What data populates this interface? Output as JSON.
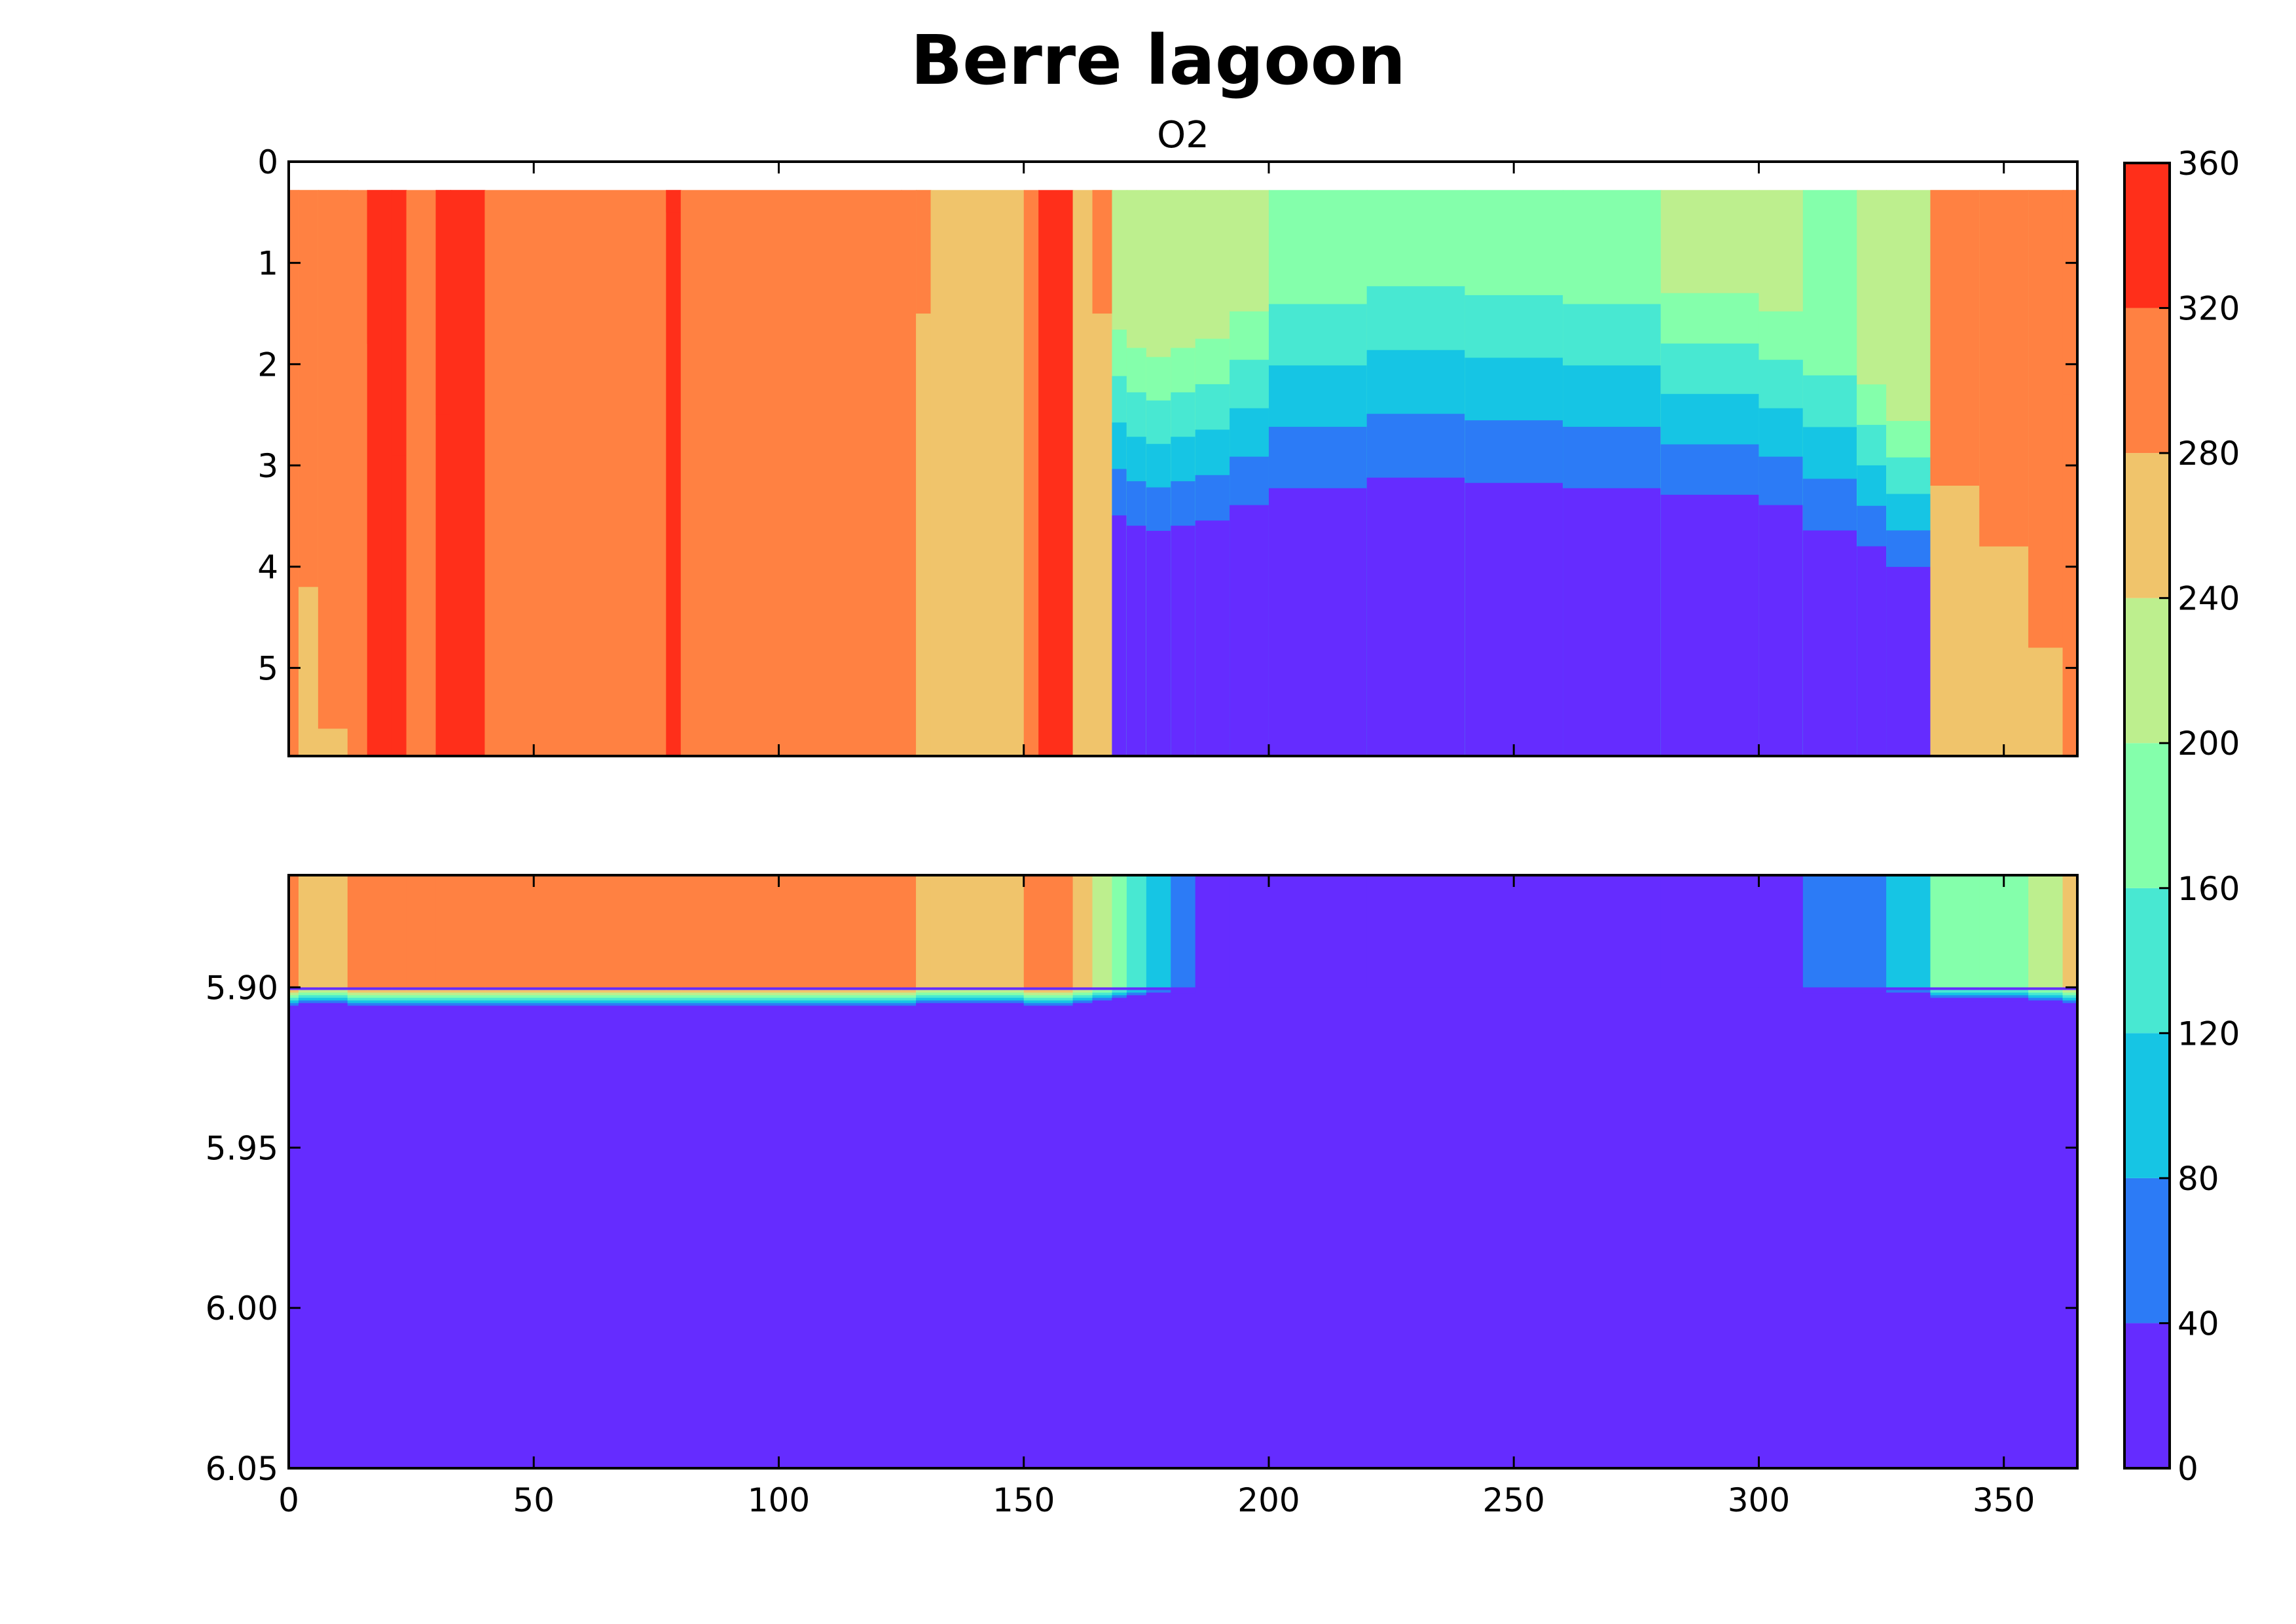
{
  "chart_data": {
    "type": "heatmap",
    "title": "Berre lagoon",
    "subtitle": "O2",
    "x": {
      "lim": [
        0,
        365
      ],
      "ticks": [
        0,
        50,
        100,
        150,
        200,
        250,
        300,
        350
      ],
      "tick_labels": [
        "0",
        "50",
        "100",
        "150",
        "200",
        "250",
        "300",
        "350"
      ]
    },
    "panels": [
      {
        "name": "upper",
        "y_lim": [
          0,
          5.87
        ],
        "y_inverted": true,
        "y_ticks": [
          0,
          1,
          2,
          3,
          4,
          5
        ],
        "y_tick_labels": [
          "0",
          "1",
          "2",
          "3",
          "4",
          "5"
        ]
      },
      {
        "name": "lower",
        "y_lim": [
          5.865,
          6.05
        ],
        "y_inverted": true,
        "y_ticks": [
          5.9,
          5.95,
          6.0,
          6.05
        ],
        "y_tick_labels": [
          "5.90",
          "5.95",
          "6.00",
          "6.05"
        ]
      }
    ],
    "colorbar": {
      "levels": [
        0,
        40,
        80,
        120,
        160,
        200,
        240,
        280,
        320,
        360
      ],
      "tick_labels": [
        "0",
        "40",
        "80",
        "120",
        "160",
        "200",
        "240",
        "280",
        "320",
        "360"
      ],
      "colors": [
        "#652cff",
        "#2c7bf6",
        "#16c5e4",
        "#48e8d2",
        "#84ffab",
        "#bdef8e",
        "#f0c46b",
        "#ff8142",
        "#ff2f1a"
      ]
    },
    "columns": [
      {
        "x": 0,
        "top": 0.28,
        "upper_band": 7,
        "upper_depth": 3.3,
        "mid_band": 7,
        "lower_band": 6
      },
      {
        "x": 2,
        "top": 0.28,
        "upper_band": 6,
        "upper_depth": 4.2,
        "mid_band": 6,
        "lower_band": 6
      },
      {
        "x": 6,
        "top": 0.28,
        "upper_band": 6,
        "upper_depth": 5.6,
        "mid_band": 6,
        "lower_band": 6
      },
      {
        "x": 12,
        "top": 0.28,
        "upper_band": 7,
        "upper_depth": null,
        "mid_band": 7,
        "lower_band": 6
      },
      {
        "x": 16,
        "top": 0.28,
        "upper_band": 8,
        "upper_depth": 1.8,
        "mid_band": 7,
        "lower_band": 6
      },
      {
        "x": 21,
        "top": 0.28,
        "upper_band": 8,
        "upper_depth": 2.9,
        "mid_band": 7,
        "lower_band": 6
      },
      {
        "x": 24,
        "top": 0.28,
        "upper_band": 7,
        "upper_depth": null,
        "mid_band": 7,
        "lower_band": 6
      },
      {
        "x": 30,
        "top": 0.28,
        "upper_band": 8,
        "upper_depth": 2.5,
        "mid_band": 7,
        "lower_band": 6
      },
      {
        "x": 33,
        "top": 0.28,
        "upper_band": 8,
        "upper_depth": 1.8,
        "mid_band": 7,
        "lower_band": 6
      },
      {
        "x": 40,
        "top": 0.28,
        "upper_band": 7,
        "upper_depth": null,
        "mid_band": 7,
        "lower_band": 6
      },
      {
        "x": 77,
        "top": 0.28,
        "upper_band": 8,
        "upper_depth": 0.5,
        "mid_band": 7,
        "lower_band": 6
      },
      {
        "x": 80,
        "top": 0.28,
        "upper_band": 7,
        "upper_depth": null,
        "mid_band": 7,
        "lower_band": 6
      },
      {
        "x": 125,
        "top": 0.28,
        "upper_band": 7,
        "upper_depth": null,
        "mid_band": 7,
        "lower_band": 6
      },
      {
        "x": 128,
        "top": 0.28,
        "upper_band": 6,
        "upper_depth": 1.5,
        "mid_band": 6,
        "lower_band": 6
      },
      {
        "x": 131,
        "top": 0.28,
        "upper_band": 6,
        "upper_depth": null,
        "mid_band": 6,
        "lower_band": 6
      },
      {
        "x": 150,
        "top": 0.28,
        "upper_band": 7,
        "upper_depth": null,
        "mid_band": 7,
        "lower_band": 6
      },
      {
        "x": 153,
        "top": 0.28,
        "upper_band": 8,
        "upper_depth": null,
        "mid_band": 7,
        "lower_band": 6
      },
      {
        "x": 160,
        "top": 0.28,
        "upper_band": 6,
        "upper_depth": null,
        "mid_band": 6,
        "lower_band": 5
      },
      {
        "x": 164,
        "top": 0.28,
        "upper_band": 6,
        "upper_depth": 1.5,
        "mid_band": 5,
        "lower_band": 4
      },
      {
        "x": 168,
        "top": 0.28,
        "upper_band": 5,
        "upper_depth": 1.2,
        "mid_band": 4,
        "lower_band": 3
      },
      {
        "x": 171,
        "top": 0.28,
        "upper_band": 5,
        "upper_depth": 1.4,
        "mid_band": 3,
        "lower_band": 2
      },
      {
        "x": 175,
        "top": 0.28,
        "upper_band": 5,
        "upper_depth": 1.5,
        "mid_band": 2,
        "lower_band": 1
      },
      {
        "x": 180,
        "top": 0.28,
        "upper_band": 5,
        "upper_depth": 1.4,
        "mid_band": 1,
        "lower_band": 0
      },
      {
        "x": 185,
        "top": 0.28,
        "upper_band": 5,
        "upper_depth": 1.3,
        "mid_band": 0,
        "lower_band": 0
      },
      {
        "x": 192,
        "top": 0.28,
        "upper_band": 5,
        "upper_depth": 1.0,
        "mid_band": 0,
        "lower_band": 0
      },
      {
        "x": 200,
        "top": 0.28,
        "upper_band": 4,
        "upper_depth": 0.8,
        "mid_band": 0,
        "lower_band": 0
      },
      {
        "x": 220,
        "top": 0.28,
        "upper_band": 4,
        "upper_depth": 0.6,
        "mid_band": 0,
        "lower_band": 0
      },
      {
        "x": 240,
        "top": 0.28,
        "upper_band": 4,
        "upper_depth": 0.7,
        "mid_band": 0,
        "lower_band": 0
      },
      {
        "x": 260,
        "top": 0.28,
        "upper_band": 4,
        "upper_depth": 0.8,
        "mid_band": 0,
        "lower_band": 0
      },
      {
        "x": 280,
        "top": 0.28,
        "upper_band": 5,
        "upper_depth": 0.8,
        "mid_band": 0,
        "lower_band": 0
      },
      {
        "x": 300,
        "top": 0.28,
        "upper_band": 5,
        "upper_depth": 1.0,
        "mid_band": 0,
        "lower_band": 0
      },
      {
        "x": 309,
        "top": 0.28,
        "upper_band": 4,
        "upper_depth": 1.6,
        "mid_band": 1,
        "lower_band": 0
      },
      {
        "x": 320,
        "top": 0.28,
        "upper_band": 5,
        "upper_depth": 1.8,
        "mid_band": 1,
        "lower_band": 0
      },
      {
        "x": 326,
        "top": 0.28,
        "upper_band": 5,
        "upper_depth": 2.2,
        "mid_band": 2,
        "lower_band": 1
      },
      {
        "x": 335,
        "top": 0.28,
        "upper_band": 6,
        "upper_depth": 3.2,
        "mid_band": 4,
        "lower_band": 2
      },
      {
        "x": 345,
        "top": 0.28,
        "upper_band": 6,
        "upper_depth": 3.8,
        "mid_band": 4,
        "lower_band": 3
      },
      {
        "x": 355,
        "top": 0.28,
        "upper_band": 6,
        "upper_depth": 4.8,
        "mid_band": 5,
        "lower_band": 4
      },
      {
        "x": 362,
        "top": 0.28,
        "upper_band": 7,
        "upper_depth": 2.3,
        "mid_band": 6,
        "lower_band": 5
      },
      {
        "x": 365,
        "top": 0.28,
        "upper_band": 7,
        "upper_depth": 2.3,
        "mid_band": 6,
        "lower_band": 5
      }
    ]
  }
}
